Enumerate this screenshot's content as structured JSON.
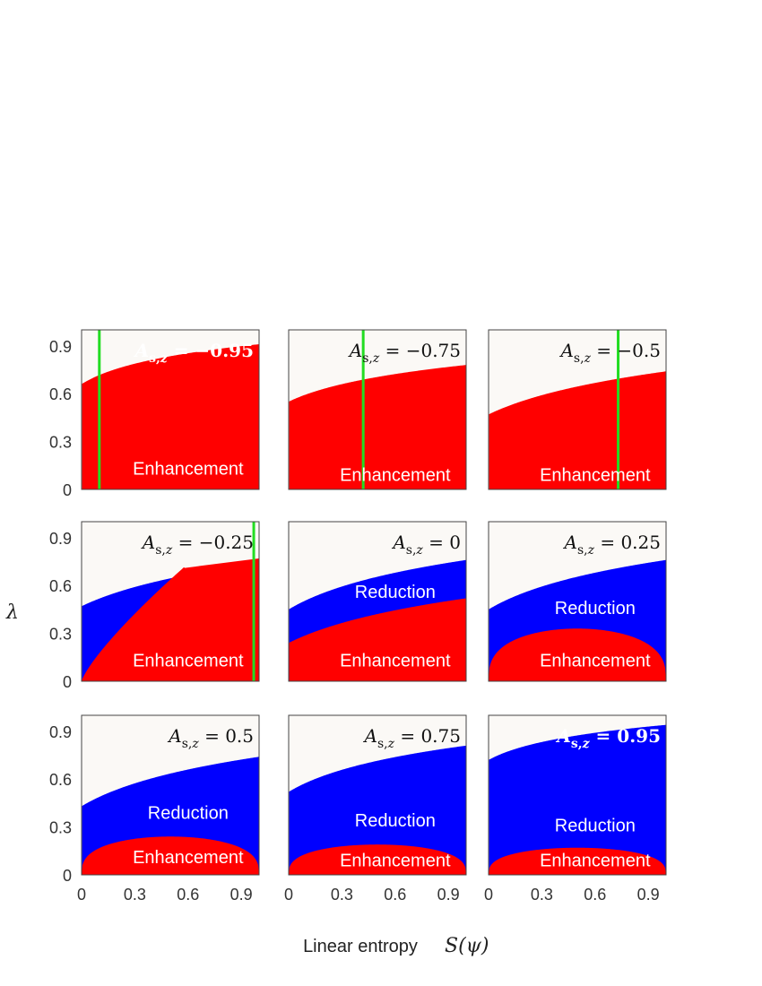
{
  "chart_data": {
    "type": "heatmap",
    "description_axes": {
      "xlabel": "Linear entropy",
      "xlabel_symbol": "S(ψ)",
      "ylabel": "λ",
      "xlim": [
        0,
        1
      ],
      "ylim": [
        0,
        1
      ],
      "x_ticks": [
        "0",
        "0.3",
        "0.6",
        "0.9"
      ],
      "y_ticks": [
        "0",
        "0.3",
        "0.6",
        "0.9"
      ]
    },
    "colors": {
      "enhancement": "#ff0000",
      "reduction": "#0000ff",
      "background": "#fbf9f6",
      "marker_line": "#22dd22"
    },
    "legend_labels": {
      "enhancement": "Enhancement",
      "reduction": "Reduction"
    },
    "panels": [
      {
        "A": "-0.95",
        "annotation": "A_{s,z} = -0.95",
        "bold": true,
        "red_top": {
          "a": 0.66,
          "b": 0.25,
          "k": 5.0
        },
        "blue_top": null,
        "marker_x": 0.1,
        "labels": [
          {
            "key": "enhancement",
            "y": 0.07
          }
        ]
      },
      {
        "A": "-0.75",
        "annotation": "A_{s,z} = -0.75",
        "bold": false,
        "red_top": {
          "a": 0.55,
          "b": 0.23,
          "k": 3.5
        },
        "blue_top": null,
        "marker_x": 0.42,
        "labels": [
          {
            "key": "enhancement",
            "y": 0.03
          }
        ]
      },
      {
        "A": "-0.5",
        "annotation": "A_{s,z} = -0.5",
        "bold": false,
        "red_top": {
          "a": 0.47,
          "b": 0.27,
          "k": 2.5
        },
        "blue_top": null,
        "marker_x": 0.73,
        "labels": [
          {
            "key": "enhancement",
            "y": 0.03
          }
        ]
      },
      {
        "A": "-0.25",
        "annotation": "A_{s,z} = -0.25",
        "bold": false,
        "red_top": "piecewise",
        "blue_top": {
          "a": 0.47,
          "b": 0.27,
          "k": 2.5,
          "xmax": 0.58
        },
        "marker_x": 0.97,
        "labels": [
          {
            "key": "enhancement",
            "y": 0.07
          }
        ]
      },
      {
        "A": "0",
        "annotation": "A_{s,z} = 0",
        "bold": false,
        "red_top": {
          "a": 0.24,
          "b": 0.28,
          "k": 2.5
        },
        "blue_top": {
          "a": 0.45,
          "b": 0.31,
          "k": 3.0
        },
        "marker_x": null,
        "labels": [
          {
            "key": "reduction",
            "y": 0.5
          },
          {
            "key": "enhancement",
            "y": 0.07
          }
        ]
      },
      {
        "A": "0.25",
        "annotation": "A_{s,z} = 0.25",
        "bold": false,
        "red_top": "arch:0.33",
        "blue_top": {
          "a": 0.45,
          "b": 0.31,
          "k": 3.0
        },
        "marker_x": null,
        "labels": [
          {
            "key": "reduction",
            "y": 0.4
          },
          {
            "key": "enhancement",
            "y": 0.07
          }
        ]
      },
      {
        "A": "0.5",
        "annotation": "A_{s,z} = 0.5",
        "bold": false,
        "red_top": "arch:0.24",
        "blue_top": {
          "a": 0.43,
          "b": 0.31,
          "k": 3.0
        },
        "marker_x": null,
        "labels": [
          {
            "key": "reduction",
            "y": 0.33
          },
          {
            "key": "enhancement",
            "y": 0.05
          }
        ]
      },
      {
        "A": "0.75",
        "annotation": "A_{s,z} = 0.75",
        "bold": false,
        "red_top": "arch:0.19",
        "blue_top": {
          "a": 0.52,
          "b": 0.29,
          "k": 3.5
        },
        "marker_x": null,
        "labels": [
          {
            "key": "reduction",
            "y": 0.28
          },
          {
            "key": "enhancement",
            "y": 0.03
          }
        ]
      },
      {
        "A": "0.95",
        "annotation": "A_{s,z} = 0.95",
        "bold": true,
        "red_top": "arch:0.17",
        "blue_top": {
          "a": 0.72,
          "b": 0.22,
          "k": 5.0
        },
        "marker_x": null,
        "labels": [
          {
            "key": "reduction",
            "y": 0.25
          },
          {
            "key": "enhancement",
            "y": 0.03
          }
        ]
      }
    ]
  }
}
